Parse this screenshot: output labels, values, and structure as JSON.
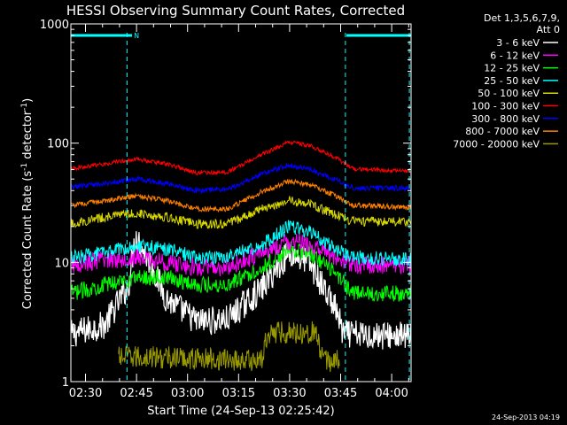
{
  "chart_data": {
    "type": "line",
    "title": "HESSI Observing Summary Count Rates, Corrected",
    "xlabel": "Start Time (24-Sep-13 02:25:42)",
    "ylabel_main": "Corrected Count Rate (s",
    "ylabel_sup1": "-1",
    "ylabel_mid": " detector",
    "ylabel_sup2": "-1",
    "ylabel_end": ")",
    "yscale": "log",
    "ylim": [
      1,
      1000
    ],
    "xlim_minutes": [
      0,
      100
    ],
    "y_ticks": [
      {
        "value": 1,
        "label": "1"
      },
      {
        "value": 10,
        "label": "10"
      },
      {
        "value": 100,
        "label": "100"
      },
      {
        "value": 1000,
        "label": "1000"
      }
    ],
    "x_ticks": [
      {
        "minute": 4.3,
        "label": "02:30"
      },
      {
        "minute": 19.3,
        "label": "02:45"
      },
      {
        "minute": 34.3,
        "label": "03:00"
      },
      {
        "minute": 49.3,
        "label": "03:15"
      },
      {
        "minute": 64.3,
        "label": "03:30"
      },
      {
        "minute": 79.3,
        "label": "03:45"
      },
      {
        "minute": 94.3,
        "label": "04:00"
      }
    ],
    "legend_title": [
      "Det 1,3,5,6,7,9,",
      "Att 0"
    ],
    "legend_placement": "right",
    "series": [
      {
        "name": "3 - 6 keV",
        "color": "#ffffff",
        "key": "s3_6"
      },
      {
        "name": "6 - 12 keV",
        "color": "#ff00ff",
        "key": "s6_12"
      },
      {
        "name": "12 - 25 keV",
        "color": "#00ff00",
        "key": "s12_25"
      },
      {
        "name": "25 - 50 keV",
        "color": "#00ffff",
        "key": "s25_50"
      },
      {
        "name": "50 - 100 keV",
        "color": "#d8d800",
        "key": "s50_100"
      },
      {
        "name": "100 - 300 keV",
        "color": "#ff0000",
        "key": "s100_300"
      },
      {
        "name": "300 - 800 keV",
        "color": "#0000ff",
        "key": "s300_800"
      },
      {
        "name": "800 - 7000 keV",
        "color": "#ff8000",
        "key": "s800_7000"
      },
      {
        "name": "7000 - 20000 keV",
        "color": "#999900",
        "key": "s7000_20000"
      }
    ],
    "series_profiles": {
      "s100_300": [
        [
          0,
          61
        ],
        [
          10,
          67
        ],
        [
          19,
          74
        ],
        [
          28,
          67
        ],
        [
          37,
          56
        ],
        [
          46,
          57
        ],
        [
          56,
          80
        ],
        [
          64,
          102
        ],
        [
          70,
          96
        ],
        [
          78,
          75
        ],
        [
          83,
          61
        ],
        [
          100,
          58
        ]
      ],
      "s300_800": [
        [
          0,
          43
        ],
        [
          10,
          46
        ],
        [
          19,
          50
        ],
        [
          28,
          46
        ],
        [
          37,
          40
        ],
        [
          46,
          41
        ],
        [
          56,
          55
        ],
        [
          64,
          65
        ],
        [
          70,
          61
        ],
        [
          78,
          49
        ],
        [
          83,
          42
        ],
        [
          100,
          42
        ]
      ],
      "s800_7000": [
        [
          0,
          30
        ],
        [
          10,
          33
        ],
        [
          19,
          36
        ],
        [
          28,
          33
        ],
        [
          37,
          28
        ],
        [
          46,
          28
        ],
        [
          56,
          39
        ],
        [
          64,
          48
        ],
        [
          70,
          45
        ],
        [
          78,
          36
        ],
        [
          83,
          30
        ],
        [
          100,
          29
        ]
      ],
      "s50_100": [
        [
          0,
          21
        ],
        [
          10,
          24
        ],
        [
          19,
          26
        ],
        [
          28,
          24
        ],
        [
          37,
          21
        ],
        [
          46,
          21
        ],
        [
          56,
          28
        ],
        [
          64,
          33
        ],
        [
          70,
          31
        ],
        [
          78,
          25
        ],
        [
          83,
          22
        ],
        [
          100,
          22
        ]
      ],
      "s25_50": [
        [
          0,
          11
        ],
        [
          10,
          12
        ],
        [
          19,
          14
        ],
        [
          28,
          13
        ],
        [
          37,
          11
        ],
        [
          46,
          11
        ],
        [
          56,
          14
        ],
        [
          64,
          20
        ],
        [
          70,
          18
        ],
        [
          78,
          13
        ],
        [
          83,
          11
        ],
        [
          100,
          10.5
        ]
      ],
      "s6_12": [
        [
          0,
          9.5
        ],
        [
          10,
          10.5
        ],
        [
          19,
          11
        ],
        [
          28,
          10
        ],
        [
          37,
          9
        ],
        [
          46,
          9
        ],
        [
          56,
          12
        ],
        [
          64,
          15
        ],
        [
          70,
          14
        ],
        [
          78,
          11
        ],
        [
          83,
          9.5
        ],
        [
          100,
          9.5
        ]
      ],
      "s12_25": [
        [
          0,
          5.5
        ],
        [
          10,
          6.5
        ],
        [
          19,
          7.5
        ],
        [
          28,
          7.5
        ],
        [
          37,
          6.5
        ],
        [
          46,
          6.5
        ],
        [
          56,
          9
        ],
        [
          64,
          13
        ],
        [
          70,
          12
        ],
        [
          78,
          8
        ],
        [
          83,
          5.5
        ],
        [
          100,
          5.5
        ]
      ],
      "s3_6": [
        [
          0,
          2.5
        ],
        [
          10,
          3
        ],
        [
          17,
          6.5
        ],
        [
          19,
          17
        ],
        [
          24,
          9
        ],
        [
          28,
          5
        ],
        [
          37,
          3.2
        ],
        [
          46,
          3.3
        ],
        [
          56,
          6
        ],
        [
          64,
          12
        ],
        [
          70,
          10
        ],
        [
          78,
          4
        ],
        [
          80,
          2.5
        ],
        [
          100,
          2.4
        ]
      ],
      "s7000_20000": [
        [
          14,
          1.6
        ],
        [
          25,
          1.6
        ],
        [
          56,
          1.5
        ],
        [
          58,
          2.6
        ],
        [
          72,
          2.6
        ],
        [
          74,
          1.5
        ],
        [
          79,
          1.5
        ]
      ]
    },
    "attenuator_bars": [
      {
        "label": "",
        "from_minute": 0,
        "to_minute": 16
      },
      {
        "label": "N",
        "from_minute": 16,
        "to_minute": 18
      },
      {
        "label": "",
        "from_minute": 81,
        "to_minute": 100
      }
    ],
    "night_lines_minutes": [
      16.5,
      80.7,
      99.5
    ]
  },
  "footer": {
    "timestamp": "24-Sep-2013 04:19"
  }
}
